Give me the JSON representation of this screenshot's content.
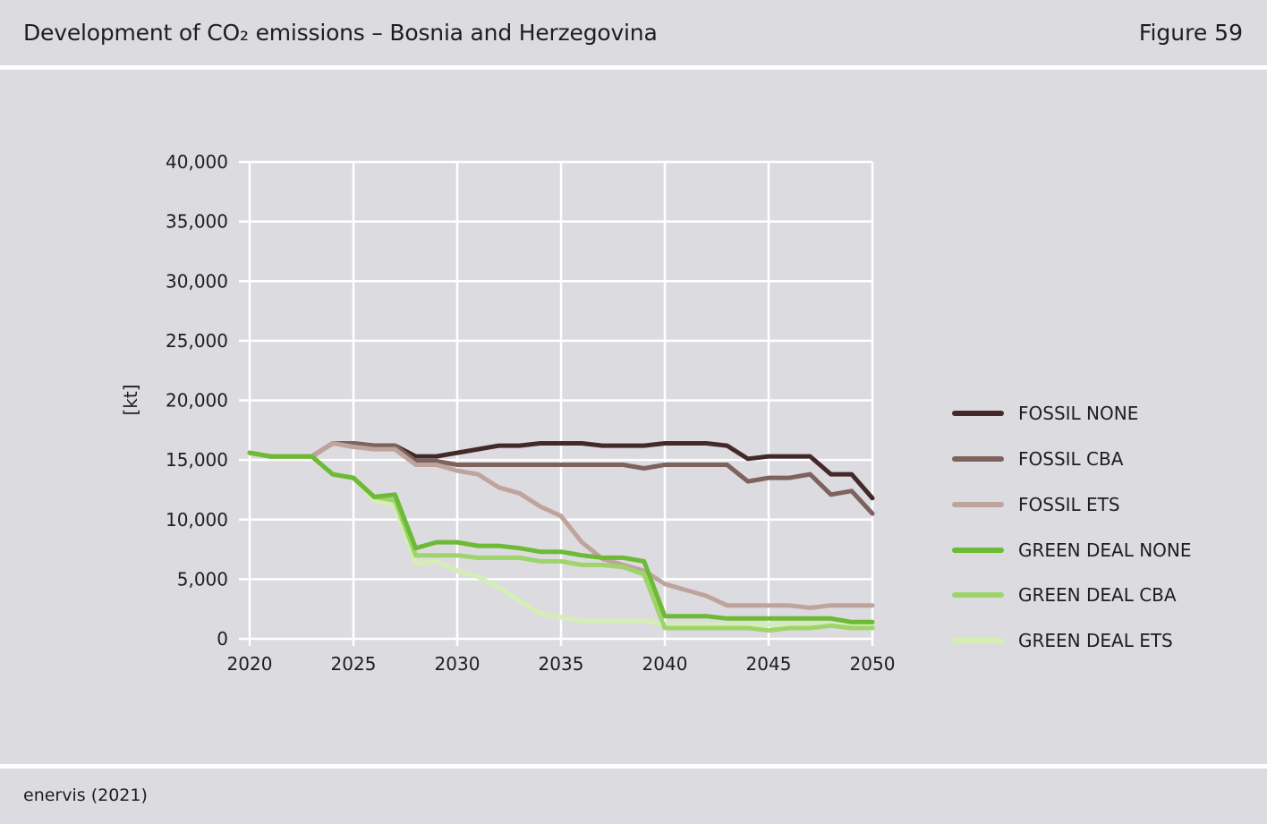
{
  "header": {
    "title": "Development of CO₂ emissions – Bosnia and Herzegovina",
    "figure": "Figure 59"
  },
  "footer": {
    "source": "enervis (2021)"
  },
  "chart_data": {
    "type": "line",
    "title": "",
    "xlabel": "",
    "ylabel": "[kt]",
    "xlim": [
      2020,
      2050
    ],
    "ylim": [
      0,
      40000
    ],
    "x_ticks": [
      2020,
      2025,
      2030,
      2035,
      2040,
      2045,
      2050
    ],
    "y_ticks": [
      0,
      5000,
      10000,
      15000,
      20000,
      25000,
      30000,
      35000,
      40000
    ],
    "y_tick_labels": [
      "0",
      "5,000",
      "10,000",
      "15,000",
      "20,000",
      "25,000",
      "30,000",
      "35,000",
      "40,000"
    ],
    "x_tick_labels": [
      "2020",
      "2025",
      "2030",
      "2035",
      "2040",
      "2045",
      "2050"
    ],
    "grid": true,
    "legend_position": "right",
    "x": [
      2020,
      2021,
      2022,
      2023,
      2024,
      2025,
      2026,
      2027,
      2028,
      2029,
      2030,
      2031,
      2032,
      2033,
      2034,
      2035,
      2036,
      2037,
      2038,
      2039,
      2040,
      2041,
      2042,
      2043,
      2044,
      2045,
      2046,
      2047,
      2048,
      2049,
      2050
    ],
    "series": [
      {
        "name": "FOSSIL NONE",
        "color": "#44292a",
        "values": [
          15600,
          15300,
          15300,
          15300,
          16400,
          16400,
          16200,
          16200,
          15300,
          15300,
          15600,
          15900,
          16200,
          16200,
          16400,
          16400,
          16400,
          16200,
          16200,
          16200,
          16400,
          16400,
          16400,
          16200,
          15100,
          15300,
          15300,
          15300,
          13800,
          13800,
          11800
        ]
      },
      {
        "name": "FOSSIL CBA",
        "color": "#7e625e",
        "values": [
          15600,
          15300,
          15300,
          15300,
          16400,
          16400,
          16200,
          16200,
          14900,
          14900,
          14600,
          14600,
          14600,
          14600,
          14600,
          14600,
          14600,
          14600,
          14600,
          14300,
          14600,
          14600,
          14600,
          14600,
          13200,
          13500,
          13500,
          13800,
          12100,
          12400,
          10500
        ]
      },
      {
        "name": "FOSSIL ETS",
        "color": "#bfa49d",
        "values": [
          15600,
          15300,
          15300,
          15300,
          16400,
          16100,
          15900,
          15900,
          14600,
          14600,
          14100,
          13800,
          12700,
          12200,
          11100,
          10300,
          8100,
          6700,
          6200,
          5700,
          4600,
          4100,
          3600,
          2800,
          2800,
          2800,
          2800,
          2600,
          2800,
          2800,
          2800
        ]
      },
      {
        "name": "GREEN DEAL NONE",
        "color": "#6cba35",
        "values": [
          15600,
          15300,
          15300,
          15300,
          13800,
          13500,
          11900,
          12100,
          7600,
          8100,
          8100,
          7800,
          7800,
          7600,
          7300,
          7300,
          7000,
          6800,
          6800,
          6500,
          1900,
          1900,
          1900,
          1700,
          1700,
          1700,
          1700,
          1700,
          1700,
          1400,
          1400
        ]
      },
      {
        "name": "GREEN DEAL CBA",
        "color": "#9fd46c",
        "values": [
          15600,
          15300,
          15300,
          15300,
          13800,
          13500,
          11900,
          11600,
          7000,
          7000,
          7000,
          6800,
          6800,
          6800,
          6500,
          6500,
          6200,
          6200,
          6000,
          5400,
          900,
          900,
          900,
          900,
          900,
          700,
          900,
          900,
          1100,
          900,
          900
        ]
      },
      {
        "name": "GREEN DEAL ETS",
        "color": "#d5eeb5",
        "values": [
          15600,
          15300,
          15300,
          15300,
          13800,
          13500,
          11600,
          11100,
          6300,
          6500,
          5700,
          5200,
          4300,
          3200,
          2100,
          1800,
          1500,
          1500,
          1500,
          1500,
          1200,
          1200,
          1200,
          1200,
          1200,
          1200,
          1200,
          1200,
          1200,
          1200,
          1200
        ]
      }
    ]
  }
}
